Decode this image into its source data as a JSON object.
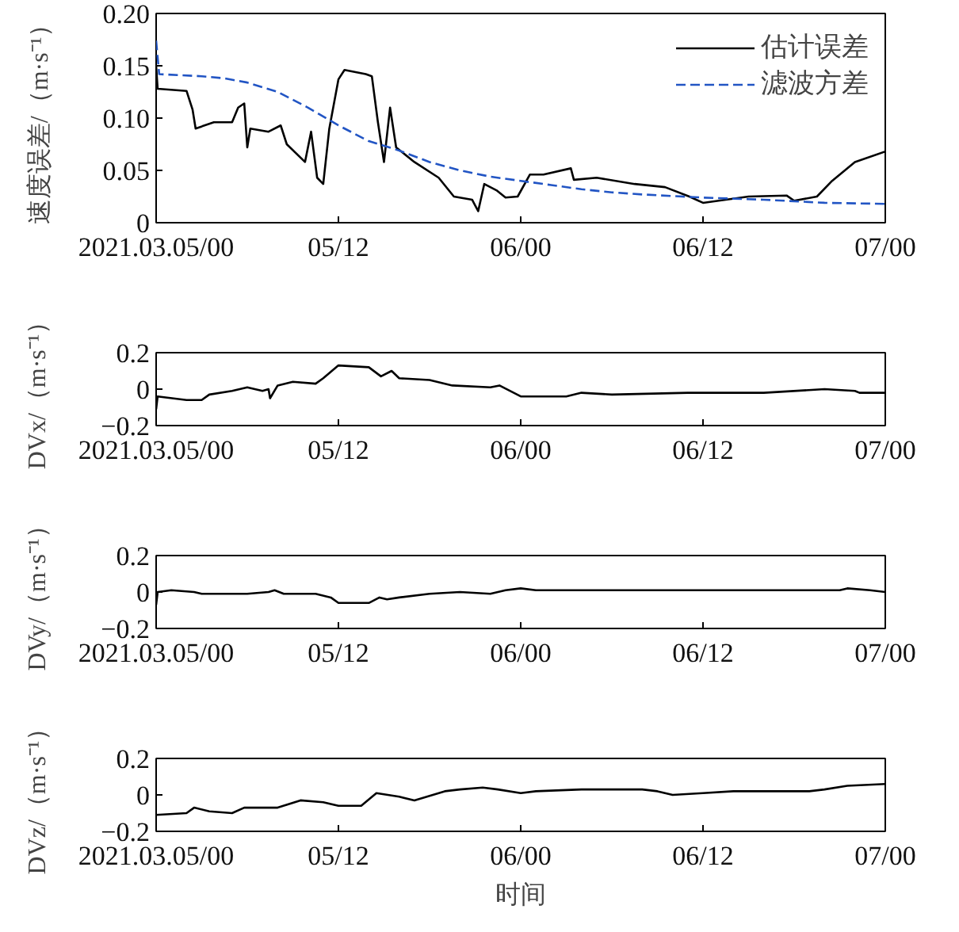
{
  "chart_data": [
    {
      "type": "line",
      "ylabel": "速度误差/（m·s⁻¹）",
      "legend": "top right",
      "xlim": [
        "2021-03-05T00:00",
        "2021-03-07T00:00"
      ],
      "ylim": [
        0,
        0.2
      ],
      "xticks": [
        {
          "value": "2021-03-05T00:00",
          "label": "2021.03.05/00"
        },
        {
          "value": "2021-03-05T12:00",
          "label": "05/12"
        },
        {
          "value": "2021-03-06T00:00",
          "label": "06/00"
        },
        {
          "value": "2021-03-06T12:00",
          "label": "06/12"
        },
        {
          "value": "2021-03-07T00:00",
          "label": "07/00"
        }
      ],
      "yticks": [
        0,
        {
          "value": 0.05,
          "label": "0.05"
        },
        {
          "value": 0.1,
          "label": "0.10"
        },
        {
          "value": 0.15,
          "label": "0.15"
        },
        {
          "value": 0.2,
          "label": "0.20"
        }
      ],
      "series": [
        {
          "name": "估计误差",
          "color": "#000000",
          "line_style": "solid",
          "x": [
            "2021-03-05T00:00",
            "2021-03-05T00:06",
            "2021-03-05T02:00",
            "2021-03-05T02:24",
            "2021-03-05T02:36",
            "2021-03-05T03:48",
            "2021-03-05T05:00",
            "2021-03-05T05:24",
            "2021-03-05T05:48",
            "2021-03-05T06:00",
            "2021-03-05T06:12",
            "2021-03-05T07:24",
            "2021-03-05T08:12",
            "2021-03-05T08:36",
            "2021-03-05T09:48",
            "2021-03-05T10:12",
            "2021-03-05T10:36",
            "2021-03-05T11:00",
            "2021-03-05T11:24",
            "2021-03-05T12:00",
            "2021-03-05T12:24",
            "2021-03-05T13:48",
            "2021-03-05T14:12",
            "2021-03-05T14:36",
            "2021-03-05T15:00",
            "2021-03-05T15:24",
            "2021-03-05T15:48",
            "2021-03-05T17:00",
            "2021-03-05T18:36",
            "2021-03-05T19:36",
            "2021-03-05T20:48",
            "2021-03-05T21:12",
            "2021-03-05T21:36",
            "2021-03-05T22:24",
            "2021-03-05T23:00",
            "2021-03-05T23:48",
            "2021-03-06T00:36",
            "2021-03-06T01:30",
            "2021-03-06T03:18",
            "2021-03-06T03:30",
            "2021-03-06T05:00",
            "2021-03-06T07:30",
            "2021-03-06T09:30",
            "2021-03-06T11:06",
            "2021-03-06T12:00",
            "2021-03-06T13:30",
            "2021-03-06T15:00",
            "2021-03-06T17:30",
            "2021-03-06T18:00",
            "2021-03-06T19:30",
            "2021-03-06T20:30",
            "2021-03-06T22:00",
            "2021-03-07T00:00"
          ],
          "values": [
            0.15,
            0.128,
            0.126,
            0.108,
            0.09,
            0.096,
            0.096,
            0.11,
            0.114,
            0.072,
            0.09,
            0.087,
            0.093,
            0.075,
            0.058,
            0.087,
            0.043,
            0.037,
            0.09,
            0.137,
            0.146,
            0.142,
            0.14,
            0.096,
            0.058,
            0.11,
            0.072,
            0.058,
            0.043,
            0.025,
            0.022,
            0.011,
            0.037,
            0.031,
            0.024,
            0.025,
            0.046,
            0.046,
            0.052,
            0.041,
            0.043,
            0.037,
            0.034,
            0.025,
            0.019,
            0.022,
            0.025,
            0.026,
            0.021,
            0.025,
            0.04,
            0.058,
            0.068
          ]
        },
        {
          "name": "滤波方差",
          "color": "#2255c4",
          "line_style": "dashed",
          "x": [
            "2021-03-05T00:00",
            "2021-03-05T00:12",
            "2021-03-05T03:00",
            "2021-03-05T04:30",
            "2021-03-05T06:00",
            "2021-03-05T08:00",
            "2021-03-05T10:00",
            "2021-03-05T12:00",
            "2021-03-05T14:00",
            "2021-03-05T16:00",
            "2021-03-05T18:00",
            "2021-03-05T20:00",
            "2021-03-05T22:00",
            "2021-03-06T00:00",
            "2021-03-06T02:00",
            "2021-03-06T04:00",
            "2021-03-06T06:00",
            "2021-03-06T08:00",
            "2021-03-06T12:00",
            "2021-03-06T16:00",
            "2021-03-06T20:00",
            "2021-03-07T00:00"
          ],
          "values": [
            0.174,
            0.142,
            0.14,
            0.138,
            0.134,
            0.125,
            0.11,
            0.093,
            0.078,
            0.069,
            0.058,
            0.05,
            0.044,
            0.04,
            0.036,
            0.032,
            0.029,
            0.027,
            0.024,
            0.022,
            0.019,
            0.018
          ]
        }
      ]
    },
    {
      "type": "line",
      "ylabel": "DVx/（m·s⁻¹）",
      "xlim": [
        "2021-03-05T00:00",
        "2021-03-07T00:00"
      ],
      "ylim": [
        -0.2,
        0.2
      ],
      "xticks": [
        {
          "value": "2021-03-05T00:00",
          "label": "2021.03.05/00"
        },
        {
          "value": "2021-03-05T12:00",
          "label": "05/12"
        },
        {
          "value": "2021-03-06T00:00",
          "label": "06/00"
        },
        {
          "value": "2021-03-06T12:00",
          "label": "06/12"
        },
        {
          "value": "2021-03-07T00:00",
          "label": "07/00"
        }
      ],
      "yticks": [
        {
          "value": -0.2,
          "label": "−0.2"
        },
        0,
        0.2
      ],
      "series": [
        {
          "color": "#000000",
          "x": [
            "2021-03-05T00:00",
            "2021-03-05T00:06",
            "2021-03-05T02:00",
            "2021-03-05T03:00",
            "2021-03-05T03:30",
            "2021-03-05T05:00",
            "2021-03-05T06:00",
            "2021-03-05T07:00",
            "2021-03-05T07:24",
            "2021-03-05T07:30",
            "2021-03-05T08:00",
            "2021-03-05T09:00",
            "2021-03-05T10:30",
            "2021-03-05T11:00",
            "2021-03-05T12:00",
            "2021-03-05T14:00",
            "2021-03-05T14:48",
            "2021-03-05T15:30",
            "2021-03-05T16:00",
            "2021-03-05T18:00",
            "2021-03-05T19:30",
            "2021-03-05T22:00",
            "2021-03-05T22:36",
            "2021-03-06T00:00",
            "2021-03-06T03:00",
            "2021-03-06T04:00",
            "2021-03-06T06:00",
            "2021-03-06T11:00",
            "2021-03-06T16:00",
            "2021-03-06T20:00",
            "2021-03-06T22:00",
            "2021-03-06T22:18",
            "2021-03-07T00:00"
          ],
          "values": [
            -0.11,
            -0.04,
            -0.06,
            -0.06,
            -0.03,
            -0.01,
            0.01,
            -0.01,
            0,
            -0.05,
            0.02,
            0.04,
            0.03,
            0.06,
            0.13,
            0.12,
            0.07,
            0.1,
            0.06,
            0.05,
            0.02,
            0.01,
            0.02,
            -0.04,
            -0.04,
            -0.02,
            -0.03,
            -0.02,
            -0.02,
            0,
            -0.01,
            -0.02,
            -0.02
          ]
        }
      ]
    },
    {
      "type": "line",
      "ylabel": "DVy/（m·s⁻¹）",
      "xlim": [
        "2021-03-05T00:00",
        "2021-03-07T00:00"
      ],
      "ylim": [
        -0.2,
        0.2
      ],
      "xticks": [
        {
          "value": "2021-03-05T00:00",
          "label": "2021.03.05/00"
        },
        {
          "value": "2021-03-05T12:00",
          "label": "05/12"
        },
        {
          "value": "2021-03-06T00:00",
          "label": "06/00"
        },
        {
          "value": "2021-03-06T12:00",
          "label": "06/12"
        },
        {
          "value": "2021-03-07T00:00",
          "label": "07/00"
        }
      ],
      "yticks": [
        {
          "value": -0.2,
          "label": "−0.2"
        },
        0,
        0.2
      ],
      "series": [
        {
          "color": "#000000",
          "x": [
            "2021-03-05T00:00",
            "2021-03-05T00:06",
            "2021-03-05T01:00",
            "2021-03-05T02:30",
            "2021-03-05T03:00",
            "2021-03-05T06:00",
            "2021-03-05T07:24",
            "2021-03-05T07:48",
            "2021-03-05T08:24",
            "2021-03-05T10:30",
            "2021-03-05T11:30",
            "2021-03-05T12:00",
            "2021-03-05T14:00",
            "2021-03-05T14:42",
            "2021-03-05T15:12",
            "2021-03-05T16:00",
            "2021-03-05T18:00",
            "2021-03-05T20:00",
            "2021-03-05T22:00",
            "2021-03-05T23:00",
            "2021-03-06T00:00",
            "2021-03-06T01:00",
            "2021-03-06T06:00",
            "2021-03-06T07:00",
            "2021-03-06T21:00",
            "2021-03-06T21:30",
            "2021-03-06T23:00",
            "2021-03-07T00:00"
          ],
          "values": [
            -0.07,
            0,
            0.01,
            0,
            -0.01,
            -0.01,
            0,
            0.01,
            -0.01,
            -0.01,
            -0.03,
            -0.06,
            -0.06,
            -0.03,
            -0.04,
            -0.03,
            -0.01,
            0,
            -0.01,
            0.01,
            0.02,
            0.01,
            0.01,
            0.01,
            0.01,
            0.02,
            0.01,
            0
          ]
        }
      ]
    },
    {
      "type": "line",
      "ylabel": "DVz/（m·s⁻¹）",
      "xlabel": "时间",
      "xlim": [
        "2021-03-05T00:00",
        "2021-03-07T00:00"
      ],
      "ylim": [
        -0.2,
        0.2
      ],
      "xticks": [
        {
          "value": "2021-03-05T00:00",
          "label": "2021.03.05/00"
        },
        {
          "value": "2021-03-05T12:00",
          "label": "05/12"
        },
        {
          "value": "2021-03-06T00:00",
          "label": "06/00"
        },
        {
          "value": "2021-03-06T12:00",
          "label": "06/12"
        },
        {
          "value": "2021-03-07T00:00",
          "label": "07/00"
        }
      ],
      "yticks": [
        {
          "value": -0.2,
          "label": "−0.2"
        },
        0,
        0.2
      ],
      "series": [
        {
          "color": "#000000",
          "x": [
            "2021-03-05T00:00",
            "2021-03-05T02:00",
            "2021-03-05T02:30",
            "2021-03-05T03:30",
            "2021-03-05T05:00",
            "2021-03-05T05:48",
            "2021-03-05T08:00",
            "2021-03-05T09:30",
            "2021-03-05T11:00",
            "2021-03-05T12:00",
            "2021-03-05T13:30",
            "2021-03-05T14:30",
            "2021-03-05T16:00",
            "2021-03-05T17:00",
            "2021-03-05T19:00",
            "2021-03-05T20:00",
            "2021-03-05T21:30",
            "2021-03-05T22:30",
            "2021-03-06T00:00",
            "2021-03-06T01:00",
            "2021-03-06T04:00",
            "2021-03-06T08:00",
            "2021-03-06T09:00",
            "2021-03-06T10:00",
            "2021-03-06T12:00",
            "2021-03-06T14:00",
            "2021-03-06T19:00",
            "2021-03-06T20:00",
            "2021-03-06T21:30",
            "2021-03-07T00:00"
          ],
          "values": [
            -0.11,
            -0.1,
            -0.07,
            -0.09,
            -0.1,
            -0.07,
            -0.07,
            -0.03,
            -0.04,
            -0.06,
            -0.06,
            0.01,
            -0.01,
            -0.03,
            0.02,
            0.03,
            0.04,
            0.03,
            0.01,
            0.02,
            0.03,
            0.03,
            0.02,
            0,
            0.01,
            0.02,
            0.02,
            0.03,
            0.05,
            0.06
          ]
        }
      ]
    }
  ]
}
